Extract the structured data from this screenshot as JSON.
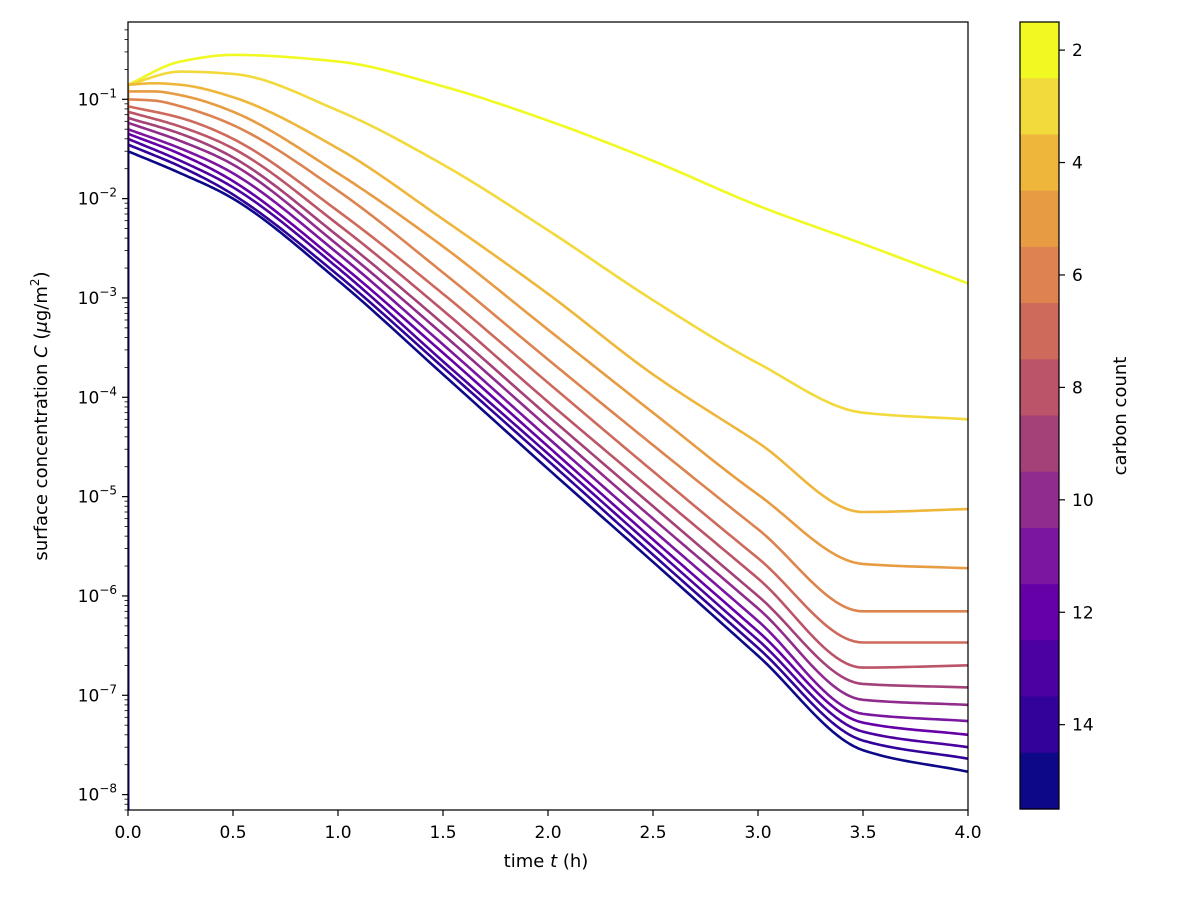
{
  "chart_data": {
    "type": "line",
    "xlabel_prefix": "time ",
    "xlabel_var": "t",
    "xlabel_suffix": " (h)",
    "ylabel_prefix": "surface concentration ",
    "ylabel_var": "C",
    "ylabel_unit_open": " (",
    "ylabel_unit_mu": "μ",
    "ylabel_unit_mid": "g/m",
    "ylabel_unit_sup": "2",
    "ylabel_unit_close": ")",
    "xlim": [
      0,
      4
    ],
    "ylim": [
      7e-09,
      0.6
    ],
    "yscale": "log",
    "grid": false,
    "x_ticks": [
      {
        "value": 0.0,
        "label": "0.0"
      },
      {
        "value": 0.5,
        "label": "0.5"
      },
      {
        "value": 1.0,
        "label": "1.0"
      },
      {
        "value": 1.5,
        "label": "1.5"
      },
      {
        "value": 2.0,
        "label": "2.0"
      },
      {
        "value": 2.5,
        "label": "2.5"
      },
      {
        "value": 3.0,
        "label": "3.0"
      },
      {
        "value": 3.5,
        "label": "3.5"
      },
      {
        "value": 4.0,
        "label": "4.0"
      }
    ],
    "y_ticks": [
      {
        "exp": -8,
        "base": "10",
        "sup": "−8"
      },
      {
        "exp": -7,
        "base": "10",
        "sup": "−7"
      },
      {
        "exp": -6,
        "base": "10",
        "sup": "−6"
      },
      {
        "exp": -5,
        "base": "10",
        "sup": "−5"
      },
      {
        "exp": -4,
        "base": "10",
        "sup": "−4"
      },
      {
        "exp": -3,
        "base": "10",
        "sup": "−3"
      },
      {
        "exp": -2,
        "base": "10",
        "sup": "−2"
      },
      {
        "exp": -1,
        "base": "10",
        "sup": "−1"
      }
    ],
    "colorbar": {
      "label": "carbon count",
      "range": [
        1.5,
        15.5
      ],
      "ticks": [
        {
          "value": 2,
          "label": "2"
        },
        {
          "value": 4,
          "label": "4"
        },
        {
          "value": 6,
          "label": "6"
        },
        {
          "value": 8,
          "label": "8"
        },
        {
          "value": 10,
          "label": "10"
        },
        {
          "value": 12,
          "label": "12"
        },
        {
          "value": 14,
          "label": "14"
        }
      ],
      "bands": [
        {
          "value": 2,
          "color": "#f0f921"
        },
        {
          "value": 3,
          "color": "#f2d93c"
        },
        {
          "value": 4,
          "color": "#eeb73b"
        },
        {
          "value": 5,
          "color": "#e79b43"
        },
        {
          "value": 6,
          "color": "#dd8350"
        },
        {
          "value": 7,
          "color": "#cd6a5c"
        },
        {
          "value": 8,
          "color": "#bb5468"
        },
        {
          "value": 9,
          "color": "#a44179"
        },
        {
          "value": 10,
          "color": "#902c8c"
        },
        {
          "value": 11,
          "color": "#7b16a1"
        },
        {
          "value": 12,
          "color": "#6500a8"
        },
        {
          "value": 13,
          "color": "#4c02a1"
        },
        {
          "value": 14,
          "color": "#32029a"
        },
        {
          "value": 15,
          "color": "#0d0887"
        }
      ]
    },
    "series": [
      {
        "carbon": 2,
        "color": "#f0f921",
        "x": [
          0,
          0.25,
          0.5,
          1.0,
          1.5,
          2.0,
          2.5,
          3.0,
          3.5,
          4.0
        ],
        "y": [
          0.14,
          0.24,
          0.28,
          0.24,
          0.135,
          0.061,
          0.024,
          0.0085,
          0.0035,
          0.0014
        ]
      },
      {
        "carbon": 3,
        "color": "#f2d93c",
        "x": [
          0,
          0.25,
          0.5,
          1.0,
          1.5,
          2.0,
          2.5,
          3.0,
          3.5,
          4.0
        ],
        "y": [
          0.14,
          0.19,
          0.18,
          0.077,
          0.022,
          0.0048,
          0.00095,
          0.00022,
          7e-05,
          6e-05
        ]
      },
      {
        "carbon": 4,
        "color": "#eeb73b",
        "x": [
          0,
          0.125,
          0.25,
          0.5,
          1.0,
          1.5,
          2.0,
          2.5,
          3.0,
          3.5,
          4.0
        ],
        "y": [
          0.14,
          0.145,
          0.14,
          0.105,
          0.032,
          0.0062,
          0.0011,
          0.00017,
          3.5e-05,
          7e-06,
          7.5e-06
        ]
      },
      {
        "carbon": 5,
        "color": "#e79b43",
        "x": [
          0,
          0.125,
          0.25,
          0.5,
          1.0,
          1.5,
          2.0,
          2.5,
          3.0,
          3.5,
          4.0
        ],
        "y": [
          0.12,
          0.12,
          0.11,
          0.075,
          0.018,
          0.0033,
          0.00048,
          7e-05,
          1.05e-05,
          2.1e-06,
          1.9e-06
        ]
      },
      {
        "carbon": 6,
        "color": "#dd8350",
        "x": [
          0,
          0.125,
          0.25,
          0.5,
          1.0,
          1.5,
          2.0,
          2.5,
          3.0,
          3.5,
          4.0
        ],
        "y": [
          0.1,
          0.097,
          0.085,
          0.055,
          0.012,
          0.0018,
          0.00024,
          3.3e-05,
          4.7e-06,
          7e-07,
          7e-07
        ]
      },
      {
        "carbon": 7,
        "color": "#cd6a5c",
        "x": [
          0,
          0.25,
          0.5,
          1.0,
          1.5,
          2.0,
          2.5,
          3.0,
          3.5,
          4.0
        ],
        "y": [
          0.085,
          0.065,
          0.04,
          0.0075,
          0.0011,
          0.00014,
          1.8e-05,
          2.4e-06,
          3.4e-07,
          3.4e-07
        ]
      },
      {
        "carbon": 8,
        "color": "#bb5468",
        "x": [
          0,
          0.25,
          0.5,
          1.0,
          1.5,
          2.0,
          2.5,
          3.0,
          3.5,
          4.0
        ],
        "y": [
          0.075,
          0.053,
          0.032,
          0.0055,
          0.00075,
          9e-05,
          1.15e-05,
          1.5e-06,
          1.9e-07,
          2e-07
        ]
      },
      {
        "carbon": 9,
        "color": "#a44179",
        "x": [
          0,
          0.25,
          0.5,
          1.0,
          1.5,
          2.0,
          2.5,
          3.0,
          3.5,
          4.0
        ],
        "y": [
          0.065,
          0.045,
          0.026,
          0.0042,
          0.00055,
          6.5e-05,
          8e-06,
          1e-06,
          1.3e-07,
          1.2e-07
        ]
      },
      {
        "carbon": 10,
        "color": "#902c8c",
        "x": [
          0,
          0.25,
          0.5,
          1.0,
          1.5,
          2.0,
          2.5,
          3.0,
          3.5,
          4.0
        ],
        "y": [
          0.058,
          0.038,
          0.022,
          0.0034,
          0.00043,
          5e-05,
          6e-06,
          7.5e-07,
          9e-08,
          8e-08
        ]
      },
      {
        "carbon": 11,
        "color": "#7b16a1",
        "x": [
          0,
          0.25,
          0.5,
          1.0,
          1.5,
          2.0,
          2.5,
          3.0,
          3.5,
          4.0
        ],
        "y": [
          0.05,
          0.032,
          0.018,
          0.0028,
          0.00034,
          3.9e-05,
          4.6e-06,
          5.6e-07,
          6.5e-08,
          5.5e-08
        ]
      },
      {
        "carbon": 12,
        "color": "#6500a8",
        "x": [
          0,
          0.25,
          0.5,
          1.0,
          1.5,
          2.0,
          2.5,
          3.0,
          3.5,
          4.0
        ],
        "y": [
          0.045,
          0.028,
          0.015,
          0.0023,
          0.00028,
          3.2e-05,
          3.7e-06,
          4.4e-07,
          5.3e-08,
          4e-08
        ]
      },
      {
        "carbon": 13,
        "color": "#4c02a1",
        "x": [
          0,
          0.25,
          0.5,
          1.0,
          1.5,
          2.0,
          2.5,
          3.0,
          3.5,
          4.0
        ],
        "y": [
          0.04,
          0.024,
          0.013,
          0.002,
          0.00023,
          2.7e-05,
          3.1e-06,
          3.6e-07,
          4.3e-08,
          3e-08
        ]
      },
      {
        "carbon": 14,
        "color": "#32029a",
        "x": [
          0,
          0.25,
          0.5,
          1.0,
          1.5,
          2.0,
          2.5,
          3.0,
          3.5,
          4.0
        ],
        "y": [
          0.035,
          0.021,
          0.011,
          0.0017,
          0.0002,
          2.3e-05,
          2.6e-06,
          3e-07,
          3.5e-08,
          2.3e-08
        ]
      },
      {
        "carbon": 15,
        "color": "#0d0887",
        "x": [
          0,
          0.25,
          0.5,
          1.0,
          1.5,
          2.0,
          2.5,
          3.0,
          3.5,
          4.0
        ],
        "y": [
          0.03,
          0.018,
          0.01,
          0.0015,
          0.00017,
          1.9e-05,
          2.2e-06,
          2.5e-07,
          2.8e-08,
          1.7e-08
        ]
      }
    ]
  }
}
